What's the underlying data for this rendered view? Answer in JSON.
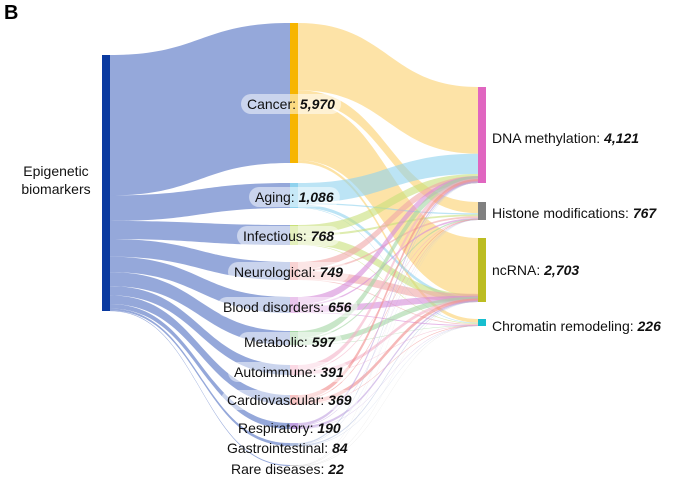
{
  "panel_label": "B",
  "source": {
    "label_line1": "Epigenetic",
    "label_line2": "biomarkers",
    "color": "#0a3aa0"
  },
  "diseases": [
    {
      "key": "cancer",
      "label": "Cancer: ",
      "value": "5,970",
      "n": 5970
    },
    {
      "key": "aging",
      "label": "Aging: ",
      "value": "1,086",
      "n": 1086
    },
    {
      "key": "infectious",
      "label": "Infectious: ",
      "value": "768",
      "n": 768
    },
    {
      "key": "neurological",
      "label": "Neurological: ",
      "value": "749",
      "n": 749
    },
    {
      "key": "blood",
      "label": "Blood disorders: ",
      "value": "656",
      "n": 656
    },
    {
      "key": "metabolic",
      "label": "Metabolic: ",
      "value": "597",
      "n": 597
    },
    {
      "key": "autoimmune",
      "label": "Autoimmune: ",
      "value": "391",
      "n": 391
    },
    {
      "key": "cardio",
      "label": "Cardiovascular: ",
      "value": "369",
      "n": 369
    },
    {
      "key": "respiratory",
      "label": "Respiratory: ",
      "value": "190",
      "n": 190
    },
    {
      "key": "gastro",
      "label": "Gastrointestinal: ",
      "value": "84",
      "n": 84
    },
    {
      "key": "rare",
      "label": "Rare diseases: ",
      "value": "22",
      "n": 22
    }
  ],
  "targets": [
    {
      "key": "dna",
      "label": "DNA methylation: ",
      "value": "4,121",
      "n": 4121,
      "color": "#e066c0"
    },
    {
      "key": "histone",
      "label": "Histone modifications: ",
      "value": "767",
      "n": 767,
      "color": "#808080"
    },
    {
      "key": "ncrna",
      "label": "ncRNA: ",
      "value": "2,703",
      "n": 2703,
      "color": "#bcbd22"
    },
    {
      "key": "chromatin",
      "label": "Chromatin remodeling: ",
      "value": "226",
      "n": 226,
      "color": "#17becf"
    }
  ],
  "colors": {
    "left_flow": "#8fa3d8",
    "cancer_node": "#f7b500",
    "cancer_flow": "#fcd98a",
    "aging_flow": "#8fd2ee",
    "infectious_flow": "#c8e07a",
    "neuro_flow": "#f0a6a6",
    "blood_flow": "#d58ad8",
    "metabolic_flow": "#a4d6a4",
    "misc_flow": "#f4b3c8"
  }
}
